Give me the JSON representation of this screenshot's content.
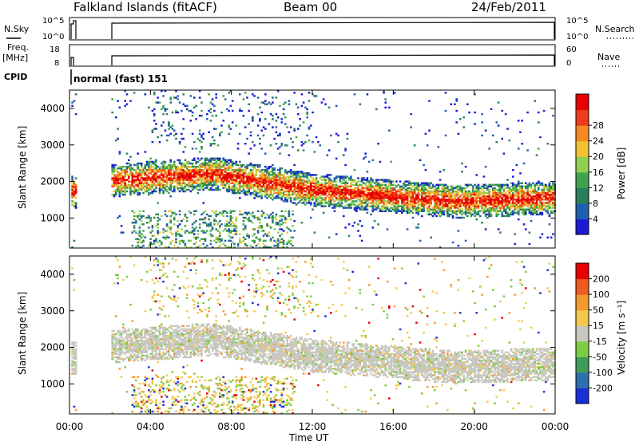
{
  "header": {
    "station": "Falkland Islands (fitACF)",
    "beam": "Beam 00",
    "date": "24/Feb/2011"
  },
  "nsky_panel": {
    "left_label": "N.Sky",
    "right_label": "N.Search",
    "left_ticks": [
      "10^5",
      "10^0"
    ],
    "right_ticks": [
      "10^5",
      "10^0"
    ]
  },
  "freq_panel": {
    "left_label_line1": "Freq.",
    "left_label_line2": "[MHz]",
    "right_label": "Nave",
    "left_ticks": [
      "18",
      "8"
    ],
    "right_ticks": [
      "60",
      "0"
    ]
  },
  "cpid": {
    "label": "CPID",
    "value": "normal (fast) 151"
  },
  "chart_data": [
    {
      "type": "heatmap",
      "title": "Power",
      "ylabel": "Slant Range [km]",
      "ylim": [
        180,
        4500
      ],
      "yticks": [
        1000,
        2000,
        3000,
        4000
      ],
      "xlim": [
        0,
        24
      ],
      "colorbar": {
        "label": "Power [dB]",
        "ticks": [
          4,
          8,
          12,
          16,
          20,
          24,
          28
        ],
        "range": [
          0,
          32
        ],
        "colors": [
          "#1b1bd6",
          "#2060b0",
          "#2a7f5a",
          "#3fa34d",
          "#8fd14f",
          "#f2c230",
          "#f58a1f",
          "#ee3b1b",
          "#e80000"
        ]
      }
    },
    {
      "type": "heatmap",
      "title": "Velocity",
      "ylabel": "Slant Range [km]",
      "ylim": [
        180,
        4500
      ],
      "yticks": [
        1000,
        2000,
        3000,
        4000
      ],
      "xlim": [
        0,
        24
      ],
      "colorbar": {
        "label": "Velocity [m s^-1]",
        "ticks": [
          200,
          100,
          50,
          15,
          -15,
          -50,
          -100,
          -200
        ],
        "colors": [
          "#1b2fd6",
          "#2e6fae",
          "#3d9c55",
          "#7ccd3f",
          "#c8c8c0",
          "#f2c94a",
          "#f29a2a",
          "#ef5a1f",
          "#e80000"
        ]
      }
    }
  ],
  "x_axis": {
    "label": "Time UT",
    "ticks": [
      "00:00",
      "04:00",
      "08:00",
      "12:00",
      "16:00",
      "20:00",
      "00:00"
    ]
  },
  "power_colorbar_label": "Power [dB]",
  "velocity_colorbar_label": "Velocity [m s⁻¹]"
}
